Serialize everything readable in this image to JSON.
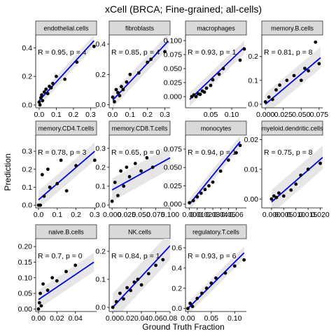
{
  "title": "xCell (BRCA; Fine-grained; all-cells)",
  "xlabel": "Ground Truth Fraction",
  "ylabel": "Prediction",
  "colors": {
    "fit_line": "#0000ff",
    "band": "#e6e6e6",
    "points": "#000000",
    "strip": "#d9d9d9"
  },
  "chart_data": [
    {
      "type": "scatter",
      "panel": "endothelial.cells",
      "annotation": "R = 0.95, p = 4",
      "xlim": [
        -0.02,
        0.335
      ],
      "ylim": [
        -0.02,
        0.49
      ],
      "xticks": [
        0.0,
        0.1,
        0.2,
        0.3
      ],
      "xtick_labels": [
        "0.0",
        "0.1",
        "0.2",
        "0.3"
      ],
      "yticks": [
        0.0,
        0.2,
        0.4
      ],
      "ytick_labels": [
        "0.0",
        "0.2",
        "0.4"
      ],
      "fit": [
        [
          0.0,
          0.03
        ],
        [
          0.32,
          0.45
        ]
      ],
      "band_halfwidth": 0.04,
      "x": [
        0.0,
        0.005,
        0.01,
        0.015,
        0.02,
        0.03,
        0.04,
        0.05,
        0.06,
        0.07,
        0.08,
        0.1,
        0.15,
        0.22,
        0.32
      ],
      "y": [
        0.02,
        0.0,
        0.05,
        0.07,
        0.03,
        0.09,
        0.11,
        0.08,
        0.13,
        0.12,
        0.15,
        0.2,
        0.18,
        0.3,
        0.41
      ]
    },
    {
      "type": "scatter",
      "panel": "fibroblasts",
      "annotation": "R = 0.85, p = 4",
      "xlim": [
        -0.02,
        0.33
      ],
      "ylim": [
        -0.02,
        0.46
      ],
      "xticks": [
        0.0,
        0.1,
        0.2,
        0.3
      ],
      "xtick_labels": [
        "0.0",
        "0.1",
        "0.2",
        "0.3"
      ],
      "yticks": [
        0.0,
        0.2,
        0.4
      ],
      "ytick_labels": [
        "0.0",
        "0.2",
        "0.4"
      ],
      "fit": [
        [
          0.0,
          0.03
        ],
        [
          0.32,
          0.42
        ]
      ],
      "band_halfwidth": 0.05,
      "x": [
        0.0,
        0.01,
        0.02,
        0.03,
        0.04,
        0.05,
        0.06,
        0.08,
        0.1,
        0.15,
        0.2,
        0.22,
        0.3
      ],
      "y": [
        0.05,
        0.02,
        0.1,
        0.08,
        0.06,
        0.12,
        0.1,
        0.15,
        0.2,
        0.21,
        0.28,
        0.3,
        0.35
      ]
    },
    {
      "type": "scatter",
      "panel": "macrophages",
      "annotation": "R = 0.93, p = 1",
      "xlim": [
        -0.01,
        0.135
      ],
      "ylim": [
        -0.02,
        0.11
      ],
      "xticks": [
        0.05,
        0.1
      ],
      "xtick_labels": [
        "0.05",
        "0.10"
      ],
      "yticks": [
        0.0,
        0.025,
        0.05,
        0.075,
        0.1
      ],
      "ytick_labels": [
        "0.000",
        "0.025",
        "0.050",
        "0.075",
        "0.100"
      ],
      "fit": [
        [
          0.0,
          -0.005
        ],
        [
          0.13,
          0.088
        ]
      ],
      "band_halfwidth": 0.012,
      "x": [
        0.005,
        0.01,
        0.015,
        0.02,
        0.025,
        0.03,
        0.035,
        0.04,
        0.05,
        0.055,
        0.07,
        0.08,
        0.12,
        0.13
      ],
      "y": [
        0.0,
        0.003,
        0.0,
        0.005,
        0.004,
        0.01,
        0.008,
        0.015,
        0.02,
        0.03,
        0.04,
        0.05,
        0.065,
        0.085
      ]
    },
    {
      "type": "scatter",
      "panel": "memory.B.cells",
      "annotation": "R = 0.81, p = 8",
      "xlim": [
        -0.005,
        0.08
      ],
      "ylim": [
        -0.015,
        0.29
      ],
      "xticks": [
        0.0,
        0.025,
        0.05,
        0.075
      ],
      "xtick_labels": [
        "0.000",
        "0.025",
        "0.050",
        "0.075"
      ],
      "yticks": [
        0.0,
        0.1,
        0.2
      ],
      "ytick_labels": [
        "0.0",
        "0.1",
        "0.2"
      ],
      "fit": [
        [
          0.0,
          0.0
        ],
        [
          0.077,
          0.195
        ]
      ],
      "band_halfwidth": 0.045,
      "x": [
        0.0,
        0.005,
        0.01,
        0.015,
        0.02,
        0.03,
        0.04,
        0.05,
        0.055,
        0.06,
        0.07,
        0.075
      ],
      "y": [
        0.01,
        0.03,
        0.02,
        0.06,
        0.08,
        0.1,
        0.12,
        0.1,
        0.15,
        0.14,
        0.26,
        0.17
      ]
    },
    {
      "type": "scatter",
      "panel": "memory.CD4.T.cells",
      "annotation": "R = 0.78, p = 3",
      "xlim": [
        -0.015,
        0.31
      ],
      "ylim": [
        -0.015,
        0.39
      ],
      "xticks": [
        0.0,
        0.1,
        0.2,
        0.3
      ],
      "xtick_labels": [
        "0.0",
        "0.1",
        "0.2",
        "0.3"
      ],
      "yticks": [
        0.0,
        0.1,
        0.2,
        0.3
      ],
      "ytick_labels": [
        "0.0",
        "0.1",
        "0.2",
        "0.3"
      ],
      "fit": [
        [
          0.0,
          0.03
        ],
        [
          0.3,
          0.3
        ]
      ],
      "band_halfwidth": 0.05,
      "x": [
        0.0,
        0.01,
        0.02,
        0.03,
        0.05,
        0.06,
        0.1,
        0.12,
        0.15,
        0.2,
        0.3
      ],
      "y": [
        0.0,
        0.0,
        0.17,
        0.05,
        0.2,
        0.1,
        0.12,
        0.25,
        0.08,
        0.22,
        0.25
      ]
    },
    {
      "type": "scatter",
      "panel": "memory.CD8.T.cells",
      "annotation": "R = 0.65, p = 0",
      "xlim": [
        -0.005,
        0.1
      ],
      "ylim": [
        -0.015,
        0.37
      ],
      "xticks": [
        0.0,
        0.025,
        0.05,
        0.075,
        0.1
      ],
      "xtick_labels": [
        "0.000",
        "0.025",
        "0.050",
        "0.075",
        "0.100"
      ],
      "yticks": [
        0.0,
        0.1,
        0.2,
        0.3
      ],
      "ytick_labels": [
        "0.0",
        "0.1",
        "0.2",
        "0.3"
      ],
      "fit": [
        [
          0.0,
          0.08
        ],
        [
          0.1,
          0.25
        ]
      ],
      "band_halfwidth": 0.06,
      "x": [
        0.0,
        0.005,
        0.01,
        0.015,
        0.02,
        0.025,
        0.03,
        0.04,
        0.05,
        0.06,
        0.07
      ],
      "y": [
        0.02,
        0.12,
        0.05,
        0.18,
        0.1,
        0.2,
        0.15,
        0.22,
        0.18,
        0.25,
        0.2
      ]
    },
    {
      "type": "scatter",
      "panel": "monocytes",
      "annotation": "R = 0.94, p = 1",
      "xlim": [
        -0.005,
        0.073
      ],
      "ylim": [
        -0.005,
        0.094
      ],
      "xticks": [
        0.0,
        0.01,
        0.02,
        0.03,
        0.04,
        0.05,
        0.06
      ],
      "xtick_labels": [
        "0.00",
        "0.01",
        "0.02",
        "0.03",
        "0.04",
        "0.05",
        "0.06"
      ],
      "yticks": [
        0.0,
        0.025,
        0.05,
        0.075
      ],
      "ytick_labels": [
        "0.000",
        "0.025",
        "0.050",
        "0.075"
      ],
      "fit": [
        [
          0.0,
          0.0
        ],
        [
          0.065,
          0.085
        ]
      ],
      "band_halfwidth": 0.008,
      "x": [
        0.0,
        0.005,
        0.01,
        0.015,
        0.02,
        0.025,
        0.03,
        0.04,
        0.05,
        0.06,
        0.065
      ],
      "y": [
        0.002,
        0.005,
        0.01,
        0.015,
        0.02,
        0.025,
        0.03,
        0.045,
        0.06,
        0.07,
        0.08
      ]
    },
    {
      "type": "scatter",
      "panel": "myeloid.dendritic.cells",
      "annotation": "R = 0.75, p = 8",
      "xlim": [
        -0.004,
        0.021
      ],
      "ylim": [
        -0.003,
        0.0215
      ],
      "xticks": [
        0.0,
        0.005,
        0.01,
        0.015,
        0.02
      ],
      "xtick_labels": [
        "0.000",
        "0.005",
        "0.010",
        "0.015",
        "0.020"
      ],
      "yticks": [
        0.0,
        0.01,
        0.02
      ],
      "ytick_labels": [
        "0.00",
        "0.01",
        "0.02"
      ],
      "fit": [
        [
          0.0,
          -0.001
        ],
        [
          0.021,
          0.014
        ]
      ],
      "band_halfwidth": 0.004,
      "x": [
        0.0,
        0.001,
        0.002,
        0.003,
        0.005,
        0.008,
        0.01,
        0.012,
        0.015,
        0.02
      ],
      "y": [
        0.0,
        0.001,
        0.0005,
        0.002,
        0.001,
        0.003,
        0.005,
        0.008,
        0.01,
        0.012
      ]
    },
    {
      "type": "scatter",
      "panel": "naive.B.cells",
      "annotation": "R = 0.7, p = 0",
      "xlim": [
        -0.003,
        0.063
      ],
      "ylim": [
        -0.008,
        0.225
      ],
      "xticks": [
        0.0,
        0.02,
        0.04
      ],
      "xtick_labels": [
        "0.00",
        "0.02",
        "0.04"
      ],
      "yticks": [
        0.0,
        0.05,
        0.1,
        0.15,
        0.2
      ],
      "ytick_labels": [
        "0.00",
        "0.05",
        "0.10",
        "0.15",
        "0.20"
      ],
      "fit": [
        [
          0.0,
          0.03
        ],
        [
          0.06,
          0.15
        ]
      ],
      "band_halfwidth": 0.03,
      "x": [
        0.0,
        0.001,
        0.002,
        0.003,
        0.005,
        0.01,
        0.015,
        0.02,
        0.03,
        0.04
      ],
      "y": [
        0.0,
        0.02,
        0.05,
        0.01,
        0.08,
        0.06,
        0.1,
        0.09,
        0.12,
        0.14
      ]
    },
    {
      "type": "scatter",
      "panel": "NK.cells",
      "annotation": "R = 0.84, p = 1",
      "xlim": [
        -0.005,
        0.08
      ],
      "ylim": [
        -0.015,
        0.245
      ],
      "xticks": [
        0.0,
        0.02,
        0.04,
        0.06,
        0.08
      ],
      "xtick_labels": [
        "0.00",
        "0.02",
        "0.04",
        "0.06",
        "0.08"
      ],
      "yticks": [
        0.0,
        0.1,
        0.2
      ],
      "ytick_labels": [
        "0.0",
        "0.1",
        "0.2"
      ],
      "fit": [
        [
          0.0,
          0.0
        ],
        [
          0.08,
          0.22
        ]
      ],
      "band_halfwidth": 0.05,
      "x": [
        0.0,
        0.005,
        0.01,
        0.015,
        0.02,
        0.025,
        0.03,
        0.035,
        0.04,
        0.05,
        0.06,
        0.07
      ],
      "y": [
        0.0,
        0.02,
        0.05,
        0.03,
        0.07,
        0.06,
        0.09,
        0.1,
        0.08,
        0.12,
        0.15,
        0.17
      ]
    },
    {
      "type": "scatter",
      "panel": "regulatory.T.cells",
      "annotation": "R = 0.93, p = 6",
      "xlim": [
        -0.005,
        0.125
      ],
      "ylim": [
        -0.03,
        0.69
      ],
      "xticks": [
        0.0,
        0.05,
        0.1
      ],
      "xtick_labels": [
        "0.00",
        "0.05",
        "0.10"
      ],
      "yticks": [
        0.0,
        0.2,
        0.4,
        0.6
      ],
      "ytick_labels": [
        "0.0",
        "0.2",
        "0.4",
        "0.6"
      ],
      "fit": [
        [
          0.0,
          0.0
        ],
        [
          0.12,
          0.55
        ]
      ],
      "band_halfwidth": 0.06,
      "x": [
        0.0,
        0.005,
        0.01,
        0.02,
        0.03,
        0.04,
        0.05,
        0.06,
        0.08,
        0.1,
        0.12
      ],
      "y": [
        0.0,
        0.05,
        0.02,
        0.1,
        0.15,
        0.2,
        0.25,
        0.3,
        0.35,
        0.42,
        0.48
      ]
    }
  ]
}
